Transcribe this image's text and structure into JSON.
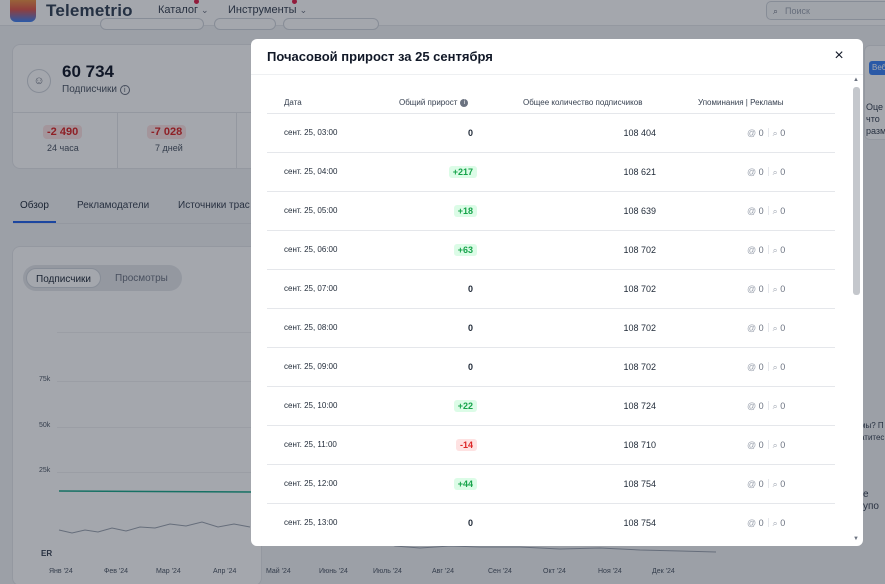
{
  "header": {
    "logo_text": "Telemetrio",
    "nav": [
      {
        "label": "Каталог"
      },
      {
        "label": "Инструменты"
      }
    ],
    "search_placeholder": "Поиск"
  },
  "stats": {
    "subscribers_value": "60 734",
    "subscribers_label": "Подписчики",
    "day_value": "-2 490",
    "day_label": "24 часа",
    "week_value": "-7 028",
    "week_label": "7 дней"
  },
  "tabs": [
    "Обзор",
    "Рекламодатели",
    "Источники трас"
  ],
  "chart": {
    "toggle": [
      "Подписчики",
      "Просмотры"
    ],
    "y_ticks": [
      "75k",
      "50k",
      "25k"
    ],
    "x_ticks": [
      "Янв '24",
      "Фев '24",
      "Мар '24",
      "Апр '24",
      "Май '24",
      "Июнь '24",
      "Июль '24",
      "Авг '24",
      "Сен '24",
      "Окт '24",
      "Ноя '24",
      "Дек '24"
    ],
    "er_label": "ER"
  },
  "right_bg": {
    "badge": "Веб",
    "lines": [
      "Оце",
      "что",
      "разм"
    ],
    "snippet1": "мы? П",
    "snippet2": "атитес",
    "snippet3": "е упо"
  },
  "modal": {
    "title": "Почасовой прирост за 25 сентября",
    "close_label": "×",
    "columns": {
      "date": "Дата",
      "growth": "Общий прирост",
      "total": "Общее количество подписчиков",
      "mentions": "Упоминания | Рекламы"
    },
    "rows": [
      {
        "date": "сент. 25, 03:00",
        "growth": "0",
        "kind": "zero",
        "total": "108 404",
        "mentions": "0",
        "ads": "0"
      },
      {
        "date": "сент. 25, 04:00",
        "growth": "+217",
        "kind": "pos",
        "total": "108 621",
        "mentions": "0",
        "ads": "0"
      },
      {
        "date": "сент. 25, 05:00",
        "growth": "+18",
        "kind": "pos",
        "total": "108 639",
        "mentions": "0",
        "ads": "0"
      },
      {
        "date": "сент. 25, 06:00",
        "growth": "+63",
        "kind": "pos",
        "total": "108 702",
        "mentions": "0",
        "ads": "0"
      },
      {
        "date": "сент. 25, 07:00",
        "growth": "0",
        "kind": "zero",
        "total": "108 702",
        "mentions": "0",
        "ads": "0"
      },
      {
        "date": "сент. 25, 08:00",
        "growth": "0",
        "kind": "zero",
        "total": "108 702",
        "mentions": "0",
        "ads": "0"
      },
      {
        "date": "сент. 25, 09:00",
        "growth": "0",
        "kind": "zero",
        "total": "108 702",
        "mentions": "0",
        "ads": "0"
      },
      {
        "date": "сент. 25, 10:00",
        "growth": "+22",
        "kind": "pos",
        "total": "108 724",
        "mentions": "0",
        "ads": "0"
      },
      {
        "date": "сент. 25, 11:00",
        "growth": "-14",
        "kind": "neg",
        "total": "108 710",
        "mentions": "0",
        "ads": "0"
      },
      {
        "date": "сент. 25, 12:00",
        "growth": "+44",
        "kind": "pos",
        "total": "108 754",
        "mentions": "0",
        "ads": "0"
      },
      {
        "date": "сент. 25, 13:00",
        "growth": "0",
        "kind": "zero",
        "total": "108 754",
        "mentions": "0",
        "ads": "0"
      }
    ]
  },
  "colors": {
    "accent": "#2563eb",
    "positive": "#16a34a",
    "negative": "#dc2626",
    "chart_line": "#1ba88a"
  }
}
